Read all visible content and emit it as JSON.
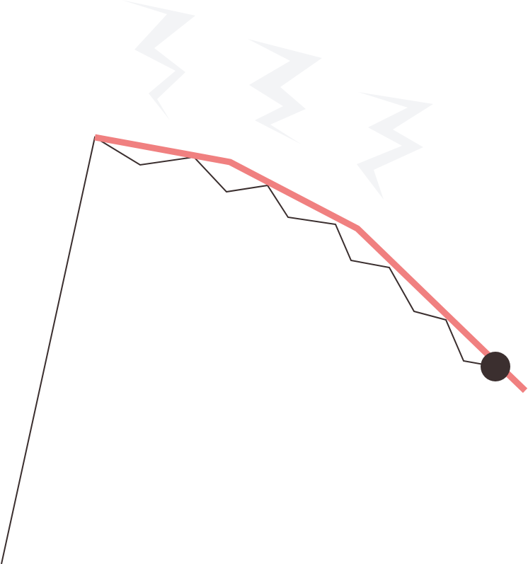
{
  "colors": {
    "background": "#ffffff",
    "zigzag_fill": "#f3f4f6",
    "line_dark": "#3a2e2e",
    "trend_line": "#f08080",
    "marker": "#3b2f2f"
  },
  "icons": {
    "lightning": "lightning-zigzag-icon",
    "marker": "end-point-dot-icon"
  }
}
